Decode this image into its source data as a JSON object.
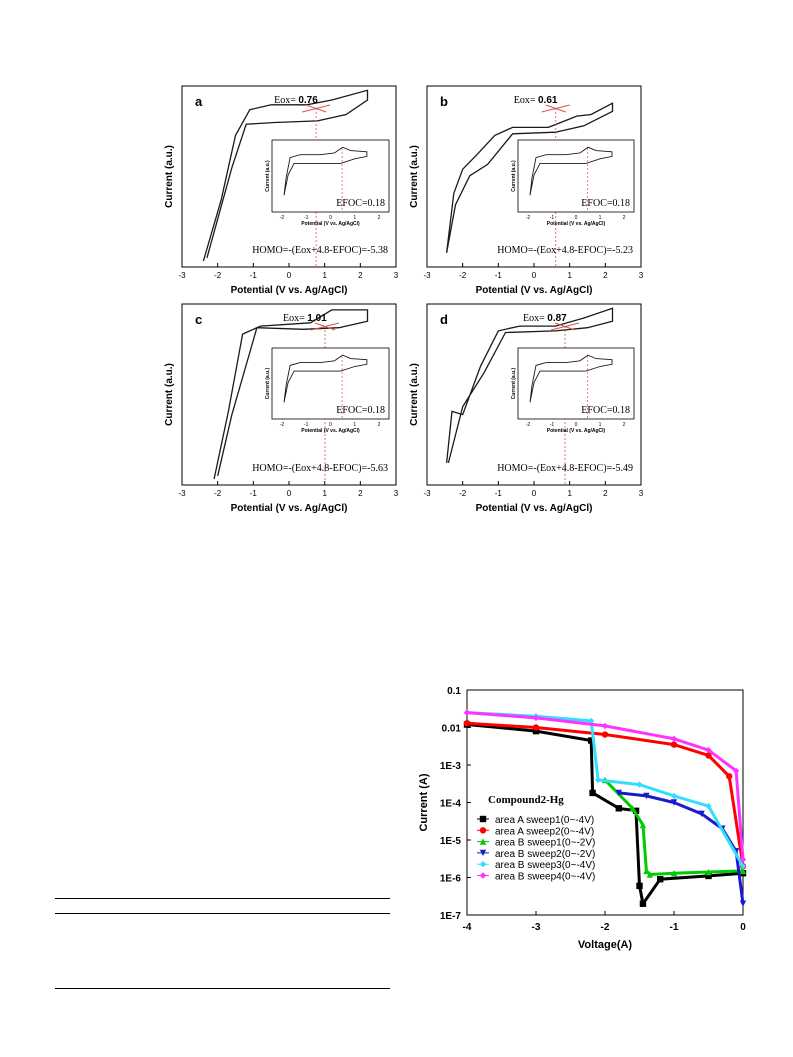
{
  "colors": {
    "cv_curve": "#1a1a1a",
    "eox_marker": "#d9534f",
    "eox_guide": "#d9534f",
    "iv_series": [
      "#000000",
      "#ff0000",
      "#00cc00",
      "#1a1acc",
      "#33ddff",
      "#ff33ff"
    ]
  },
  "chart_data": [
    {
      "type": "line",
      "panel": "a",
      "xlabel": "Potential (V vs. Ag/AgCl)",
      "ylabel": "Current (a.u.)",
      "xlim": [
        -3,
        3
      ],
      "xticks": [
        "-3",
        "-2",
        "-1",
        "0",
        "1",
        "2",
        "3"
      ],
      "eox_text": "Eox=",
      "eox_value": "0.76",
      "eox": 0.76,
      "homo_text": "HOMO=-(Eox+4.8-EFOC)=-5.38",
      "inset": {
        "xlabel": "Potential (V vs. Ag/AgCl)",
        "ylabel": "Current (a.u.)",
        "xticks": [
          "-2",
          "-1",
          "0",
          "1",
          "2"
        ],
        "efoc_text": "EFOC=0.18"
      }
    },
    {
      "type": "line",
      "panel": "b",
      "xlabel": "Potential (V vs. Ag/AgCl)",
      "ylabel": "Current (a.u.)",
      "xlim": [
        -3,
        3
      ],
      "xticks": [
        "-3",
        "-2",
        "-1",
        "0",
        "1",
        "2",
        "3"
      ],
      "eox_text": "Eox=",
      "eox_value": "0.61",
      "eox": 0.61,
      "homo_text": "HOMO=-(Eox+4.8-EFOC)=-5.23",
      "inset": {
        "xlabel": "Potential (V vs. Ag/AgCl)",
        "ylabel": "Current (a.u.)",
        "xticks": [
          "-2",
          "-1",
          "0",
          "1",
          "2"
        ],
        "efoc_text": "EFOC=0.18"
      }
    },
    {
      "type": "line",
      "panel": "c",
      "xlabel": "Potential (V vs. Ag/AgCl)",
      "ylabel": "Current (a.u.)",
      "xlim": [
        -3,
        3
      ],
      "xticks": [
        "-3",
        "-2",
        "-1",
        "0",
        "1",
        "2",
        "3"
      ],
      "eox_text": "Eox=",
      "eox_value": "1.01",
      "eox": 1.01,
      "homo_text": "HOMO=-(Eox+4.8-EFOC)=-5.63",
      "inset": {
        "xlabel": "Potential (V vs. Ag/AgCl)",
        "ylabel": "Current (a.u.)",
        "xticks": [
          "-2",
          "-1",
          "0",
          "1",
          "2"
        ],
        "efoc_text": "EFOC=0.18"
      }
    },
    {
      "type": "line",
      "panel": "d",
      "xlabel": "Potential (V vs. Ag/AgCl)",
      "ylabel": "Current (a.u.)",
      "xlim": [
        -3,
        3
      ],
      "xticks": [
        "-3",
        "-2",
        "-1",
        "0",
        "1",
        "2",
        "3"
      ],
      "eox_text": "Eox=",
      "eox_value": "0.87",
      "eox": 0.87,
      "homo_text": "HOMO=-(Eox+4.8-EFOC)=-5.49",
      "inset": {
        "xlabel": "Potential (V vs. Ag/AgCl)",
        "ylabel": "Current (a.u.)",
        "xticks": [
          "-2",
          "-1",
          "0",
          "1",
          "2"
        ],
        "efoc_text": "EFOC=0.18"
      }
    },
    {
      "type": "scatter",
      "xlabel": "Voltage(A)",
      "ylabel": "Current (A)",
      "xlim": [
        -4,
        0
      ],
      "ylim": [
        1e-07,
        0.1
      ],
      "yscale": "log",
      "xticks": [
        "-4",
        "-3",
        "-2",
        "-1",
        "0"
      ],
      "yticks": [
        "0.1",
        "0.01",
        "1E-3",
        "1E-4",
        "1E-5",
        "1E-6",
        "1E-7"
      ],
      "annotation": "Compound2-Hg",
      "legend_position": "center-left",
      "series": [
        {
          "name": "area A sweep1(0~-4V)",
          "x": [
            -4,
            -3,
            -2.2,
            -2.18,
            -1.8,
            -1.55,
            -1.5,
            -1.45,
            -1.2,
            -0.5,
            0
          ],
          "y": [
            0.012,
            0.008,
            0.0045,
            0.00018,
            7e-05,
            6e-05,
            6e-07,
            2e-07,
            9e-07,
            1.1e-06,
            1.3e-06
          ]
        },
        {
          "name": "area A sweep2(0~-4V)",
          "x": [
            -4,
            -3,
            -2,
            -1,
            -0.5,
            -0.2,
            0
          ],
          "y": [
            0.013,
            0.01,
            0.0065,
            0.0035,
            0.0018,
            0.0005,
            2e-06
          ]
        },
        {
          "name": "area B sweep1(0~-2V)",
          "x": [
            -2,
            -1.6,
            -1.45,
            -1.4,
            -1.35,
            -1.0,
            -0.5,
            0
          ],
          "y": [
            0.0004,
            7e-05,
            2.5e-05,
            1.5e-06,
            1.2e-06,
            1.3e-06,
            1.4e-06,
            1.5e-06
          ]
        },
        {
          "name": "area B sweep2(0~-2V)",
          "x": [
            -1.8,
            -1.4,
            -1.0,
            -0.6,
            -0.3,
            -0.1,
            0
          ],
          "y": [
            0.00018,
            0.00015,
            0.0001,
            5e-05,
            2e-05,
            5e-06,
            2e-07
          ]
        },
        {
          "name": "area B sweep3(0~-4V)",
          "x": [
            -4,
            -3,
            -2.2,
            -2.1,
            -1.5,
            -1.0,
            -0.5,
            0
          ],
          "y": [
            0.025,
            0.02,
            0.015,
            0.0004,
            0.0003,
            0.00015,
            8e-05,
            2e-06
          ]
        },
        {
          "name": "area B sweep4(0~-4V)",
          "x": [
            -4,
            -3,
            -2,
            -1,
            -0.5,
            -0.1,
            0
          ],
          "y": [
            0.025,
            0.018,
            0.011,
            0.005,
            0.0025,
            0.0007,
            3e-06
          ]
        }
      ]
    }
  ]
}
